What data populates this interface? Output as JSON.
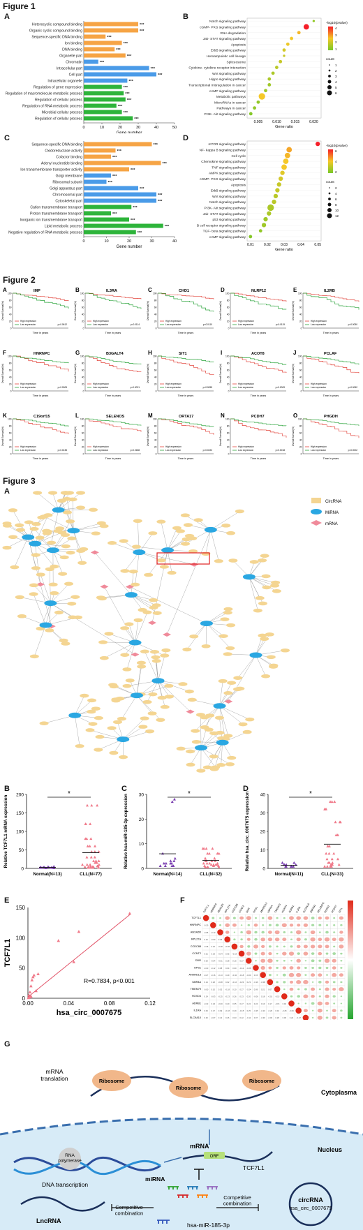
{
  "figure1": {
    "title": "Figure 1",
    "panelA": {
      "letter": "A",
      "xlabel": "Gene number",
      "ticks": [
        "0",
        "10",
        "20",
        "30",
        "40",
        "50"
      ],
      "colors": {
        "orange": "#f6a445",
        "blue": "#4a9be8",
        "green": "#2db43a"
      },
      "bars": [
        {
          "label": "Heterocyclic compound binding",
          "value": 30,
          "group": "orange"
        },
        {
          "label": "Organic cyclic compound binding",
          "value": 30,
          "group": "orange"
        },
        {
          "label": "Sequence-specific DNA binding",
          "value": 12,
          "group": "orange"
        },
        {
          "label": "Ion binding",
          "value": 21,
          "group": "orange"
        },
        {
          "label": "DNA binding",
          "value": 17,
          "group": "orange"
        },
        {
          "label": "Organelle part",
          "value": 23,
          "group": "orange"
        },
        {
          "label": "Chromatin",
          "value": 8,
          "group": "blue"
        },
        {
          "label": "Intracellular part",
          "value": 36,
          "group": "blue"
        },
        {
          "label": "Cell part",
          "value": 40,
          "group": "blue"
        },
        {
          "label": "Intracellular organelle",
          "value": 24,
          "group": "blue"
        },
        {
          "label": "Regulation of gene expression",
          "value": 21,
          "group": "green"
        },
        {
          "label": "Regulation of macromolecule metabolic process",
          "value": 22,
          "group": "green"
        },
        {
          "label": "Regulation of cellular process",
          "value": 23,
          "group": "green"
        },
        {
          "label": "Regulation of RNA metabolic process",
          "value": 18,
          "group": "green"
        },
        {
          "label": "Microbial cellular process",
          "value": 21,
          "group": "green"
        },
        {
          "label": "Regulation of cellular process",
          "value": 27,
          "group": "green"
        }
      ],
      "stars": "***"
    },
    "panelB": {
      "letter": "B",
      "xlabel": "Gene ratio",
      "ticks": [
        "0.005",
        "0.010",
        "0.015",
        "0.020"
      ],
      "legend_title": "-log10(pvalue)",
      "count_title": "count",
      "count_values": [
        "1",
        "2",
        "3",
        "4",
        "5",
        "6"
      ],
      "color_ticks": [
        "4",
        "3",
        "2",
        "1"
      ],
      "pathways": [
        {
          "label": "Notch signaling pathway",
          "x": 0.02,
          "size": 1,
          "c": 0.1
        },
        {
          "label": "cGMP- PKG signaling pathway",
          "x": 0.018,
          "size": 4,
          "c": 1.0
        },
        {
          "label": "RNA degradation",
          "x": 0.016,
          "size": 2,
          "c": 0.55
        },
        {
          "label": "Jak- STAT signaling pathway",
          "x": 0.014,
          "size": 2,
          "c": 0.5
        },
        {
          "label": "Apoptosis",
          "x": 0.013,
          "size": 2,
          "c": 0.45
        },
        {
          "label": "ErbB signaling pathway",
          "x": 0.012,
          "size": 2,
          "c": 0.35
        },
        {
          "label": "Hematopoietic cell lineage",
          "x": 0.012,
          "size": 1,
          "c": 0.3
        },
        {
          "label": "Spliceosome",
          "x": 0.011,
          "size": 2,
          "c": 0.3
        },
        {
          "label": "Cytokine- cytokine receptor interaction",
          "x": 0.01,
          "size": 2,
          "c": 0.25
        },
        {
          "label": "Wnt signaling pathway",
          "x": 0.009,
          "size": 2,
          "c": 0.2
        },
        {
          "label": "Hippo signaling pathway",
          "x": 0.008,
          "size": 2,
          "c": 0.2
        },
        {
          "label": "Transcriptional misregulation in cancer",
          "x": 0.008,
          "size": 2,
          "c": 0.15
        },
        {
          "label": "cAMP signaling pathway",
          "x": 0.007,
          "size": 2,
          "c": 0.15
        },
        {
          "label": "Metabolic pathways",
          "x": 0.006,
          "size": 5,
          "c": 0.5
        },
        {
          "label": "MicroRNAs in cancer",
          "x": 0.005,
          "size": 2,
          "c": 0.1
        },
        {
          "label": "Pathways in cancer",
          "x": 0.004,
          "size": 2,
          "c": 0.1
        },
        {
          "label": "PI3K- Akt signaling pathway",
          "x": 0.003,
          "size": 2,
          "c": 0.05
        }
      ]
    },
    "panelC": {
      "letter": "C",
      "xlabel": "Gene number",
      "ticks": [
        "0",
        "10",
        "20",
        "30",
        "40"
      ],
      "bars": [
        {
          "label": "Sequence-specific DNA binding",
          "value": 30,
          "group": "orange"
        },
        {
          "label": "Oxidoreductase activity",
          "value": 14,
          "group": "orange"
        },
        {
          "label": "Cofactor binding",
          "value": 12,
          "group": "orange"
        },
        {
          "label": "Adenyl nucleotide binding",
          "value": 34,
          "group": "orange"
        },
        {
          "label": "Ion transmembrane transporter activity",
          "value": 20,
          "group": "orange"
        },
        {
          "label": "Golgi membrane",
          "value": 12,
          "group": "blue"
        },
        {
          "label": "Ribosomal subunit",
          "value": 10,
          "group": "blue"
        },
        {
          "label": "Golgi apparatus part",
          "value": 24,
          "group": "blue"
        },
        {
          "label": "Chromosomal part",
          "value": 32,
          "group": "blue"
        },
        {
          "label": "Cytoskeletal part",
          "value": 32,
          "group": "blue"
        },
        {
          "label": "Cation transmembrane transport",
          "value": 21,
          "group": "green"
        },
        {
          "label": "Proton transmembrane transport",
          "value": 12,
          "group": "green"
        },
        {
          "label": "Inorganic ion transmembrane transport",
          "value": 20,
          "group": "green"
        },
        {
          "label": "Lipid metabolic process",
          "value": 35,
          "group": "green"
        },
        {
          "label": "Negative regulation of RNA metabolic process",
          "value": 23,
          "group": "green"
        }
      ],
      "stars": "***"
    },
    "panelD": {
      "letter": "D",
      "xlabel": "Gene ratio",
      "ticks": [
        "0.01",
        "0.02",
        "0.03",
        "0.04",
        "0.05"
      ],
      "legend_title": "-log10(pvalue)",
      "count_title": "count",
      "count_values": [
        "2",
        "4",
        "6",
        "8",
        "10",
        "12"
      ],
      "color_ticks": [
        "6",
        "4",
        "2"
      ],
      "pathways": [
        {
          "label": "mTOR signaling pathway",
          "x": 0.05,
          "size": 3,
          "c": 1.0
        },
        {
          "label": "NF- kappa B signaling pathway",
          "x": 0.033,
          "size": 4,
          "c": 0.6
        },
        {
          "label": "Cell cycle",
          "x": 0.032,
          "size": 4,
          "c": 0.55
        },
        {
          "label": "Chemokine signaling pathway",
          "x": 0.031,
          "size": 4,
          "c": 0.5
        },
        {
          "label": "TNF signaling pathway",
          "x": 0.03,
          "size": 4,
          "c": 0.5
        },
        {
          "label": "AMPK signaling pathway",
          "x": 0.029,
          "size": 3,
          "c": 0.4
        },
        {
          "label": "cGMP- PKG signaling pathway",
          "x": 0.028,
          "size": 3,
          "c": 0.35
        },
        {
          "label": "Apoptosis",
          "x": 0.027,
          "size": 3,
          "c": 0.3
        },
        {
          "label": "ErbB signaling pathway",
          "x": 0.026,
          "size": 3,
          "c": 0.3
        },
        {
          "label": "Wnt signaling pathway",
          "x": 0.025,
          "size": 3,
          "c": 0.25
        },
        {
          "label": "Notch signaling pathway",
          "x": 0.024,
          "size": 3,
          "c": 0.25
        },
        {
          "label": "PI3K- Akt signaling pathway",
          "x": 0.022,
          "size": 5,
          "c": 0.2
        },
        {
          "label": "Jak- STAT signaling pathway",
          "x": 0.021,
          "size": 3,
          "c": 0.2
        },
        {
          "label": "p53 signaling pathway",
          "x": 0.019,
          "size": 3,
          "c": 0.15
        },
        {
          "label": "B cell receptor signaling pathway",
          "x": 0.018,
          "size": 3,
          "c": 0.15
        },
        {
          "label": "TGF- beta signaling pathway",
          "x": 0.016,
          "size": 2,
          "c": 0.1
        },
        {
          "label": "cAMP signaling pathway",
          "x": 0.01,
          "size": 2,
          "c": 0.05
        }
      ]
    }
  },
  "figure2": {
    "title": "Figure 2",
    "ylabel": "Overall Survival(%)",
    "xlabel": "Time in years",
    "legend_high": "High expression",
    "legend_low": "Low expression",
    "panels": [
      {
        "letter": "A",
        "gene": "IMP",
        "p": "p=0.0612"
      },
      {
        "letter": "B",
        "gene": "IL3RA",
        "p": "p=0.0114"
      },
      {
        "letter": "C",
        "gene": "CHD1",
        "p": "p=0.0110"
      },
      {
        "letter": "D",
        "gene": "NLRP12",
        "p": "p=0.0119"
      },
      {
        "letter": "E",
        "gene": "IL2RB",
        "p": "p=0.0050"
      },
      {
        "letter": "F",
        "gene": "HNRNPC",
        "p": "p=0.0005"
      },
      {
        "letter": "G",
        "gene": "B3GALT4",
        "p": "p=0.0021"
      },
      {
        "letter": "H",
        "gene": "SIT1",
        "p": "p=0.0055"
      },
      {
        "letter": "I",
        "gene": "ACOT8",
        "p": "p=0.0009"
      },
      {
        "letter": "J",
        "gene": "PCLAF",
        "p": "p=0.0062"
      },
      {
        "letter": "K",
        "gene": "C19orf15",
        "p": "p=0.0135"
      },
      {
        "letter": "L",
        "gene": "SELENOS",
        "p": "p=0.0188"
      },
      {
        "letter": "M",
        "gene": "ORTA17",
        "p": "p=0.0222"
      },
      {
        "letter": "N",
        "gene": "PCDH7",
        "p": "p=0.0018"
      },
      {
        "letter": "O",
        "gene": "PHGDH",
        "p": "p=0.0002"
      }
    ]
  },
  "figure3": {
    "title": "Figure 3",
    "panelA": {
      "letter": "A",
      "legend": [
        {
          "label": "CircRNA",
          "color": "#f4d592"
        },
        {
          "label": "MiRNA",
          "color": "#2aa7e2"
        },
        {
          "label": "mRNA",
          "color": "#f08a9a"
        }
      ]
    },
    "panelB": {
      "letter": "B",
      "ylabel": "Relative TCF7L1 mRNA expression",
      "groups": [
        "Normal(N=13)",
        "CLL(N=77)"
      ],
      "yticks": [
        "0",
        "50",
        "100",
        "150",
        "200"
      ],
      "sig": "*"
    },
    "panelC": {
      "letter": "C",
      "ylabel": "Relative hsa-miR-185-3p expression",
      "groups": [
        "Normal(N=14)",
        "CLL(N=32)"
      ],
      "yticks": [
        "0",
        "10",
        "20",
        "30"
      ],
      "sig": "*"
    },
    "panelD": {
      "letter": "D",
      "ylabel": "Relative hsa_circ_0007675 expression",
      "groups": [
        "Normal(N=11)",
        "CLL(N=33)"
      ],
      "yticks": [
        "0",
        "10",
        "20",
        "30",
        "40"
      ],
      "sig": "*"
    },
    "panelE": {
      "letter": "E",
      "ylabel": "TCF7L1",
      "xlabel": "hsa_circ_0007675",
      "stat": "R=0.7834, p<0.001",
      "xticks": [
        "0.00",
        "0.04",
        "0.08",
        "0.12"
      ],
      "yticks": [
        "0",
        "50",
        "100",
        "150"
      ]
    },
    "panelF": {
      "letter": "F",
      "genes": [
        "TCF7L1",
        "HNRNPC",
        "ANXA2R",
        "RPL27A",
        "CCDC88",
        "CCNT2",
        "DDR",
        "OPS1",
        "ANKRD13",
        "UBR4A",
        "TMEM79",
        "HOXD4",
        "ADRB1",
        "IL1RA",
        "SLC9A10",
        "ZNF592",
        "SELENOS",
        "RDR52",
        "PCDH7",
        "SIT1"
      ]
    },
    "panelG": {
      "letter": "G",
      "mrna_translation": "mRNA\ntranslation",
      "ribosome": "Ribosome",
      "cytoplasma": "Cytoplasma",
      "nucleus": "Nucleus",
      "rna_polymerase": "RNA\npolymerase",
      "dna_transcription": "DNA transcription",
      "mrna": "mRNA",
      "orf": "ORF",
      "tcf7l1": "TCF7L1",
      "mirna": "miRNA",
      "lncrna": "LncRNA",
      "competitive1": "Competitive\ncombination",
      "competitive2": "Competitive\ncombination",
      "circrna": "circRNA",
      "circ_name": "hsa_circ_0007675",
      "mir_name": "hsa-miR-185-3p"
    }
  }
}
